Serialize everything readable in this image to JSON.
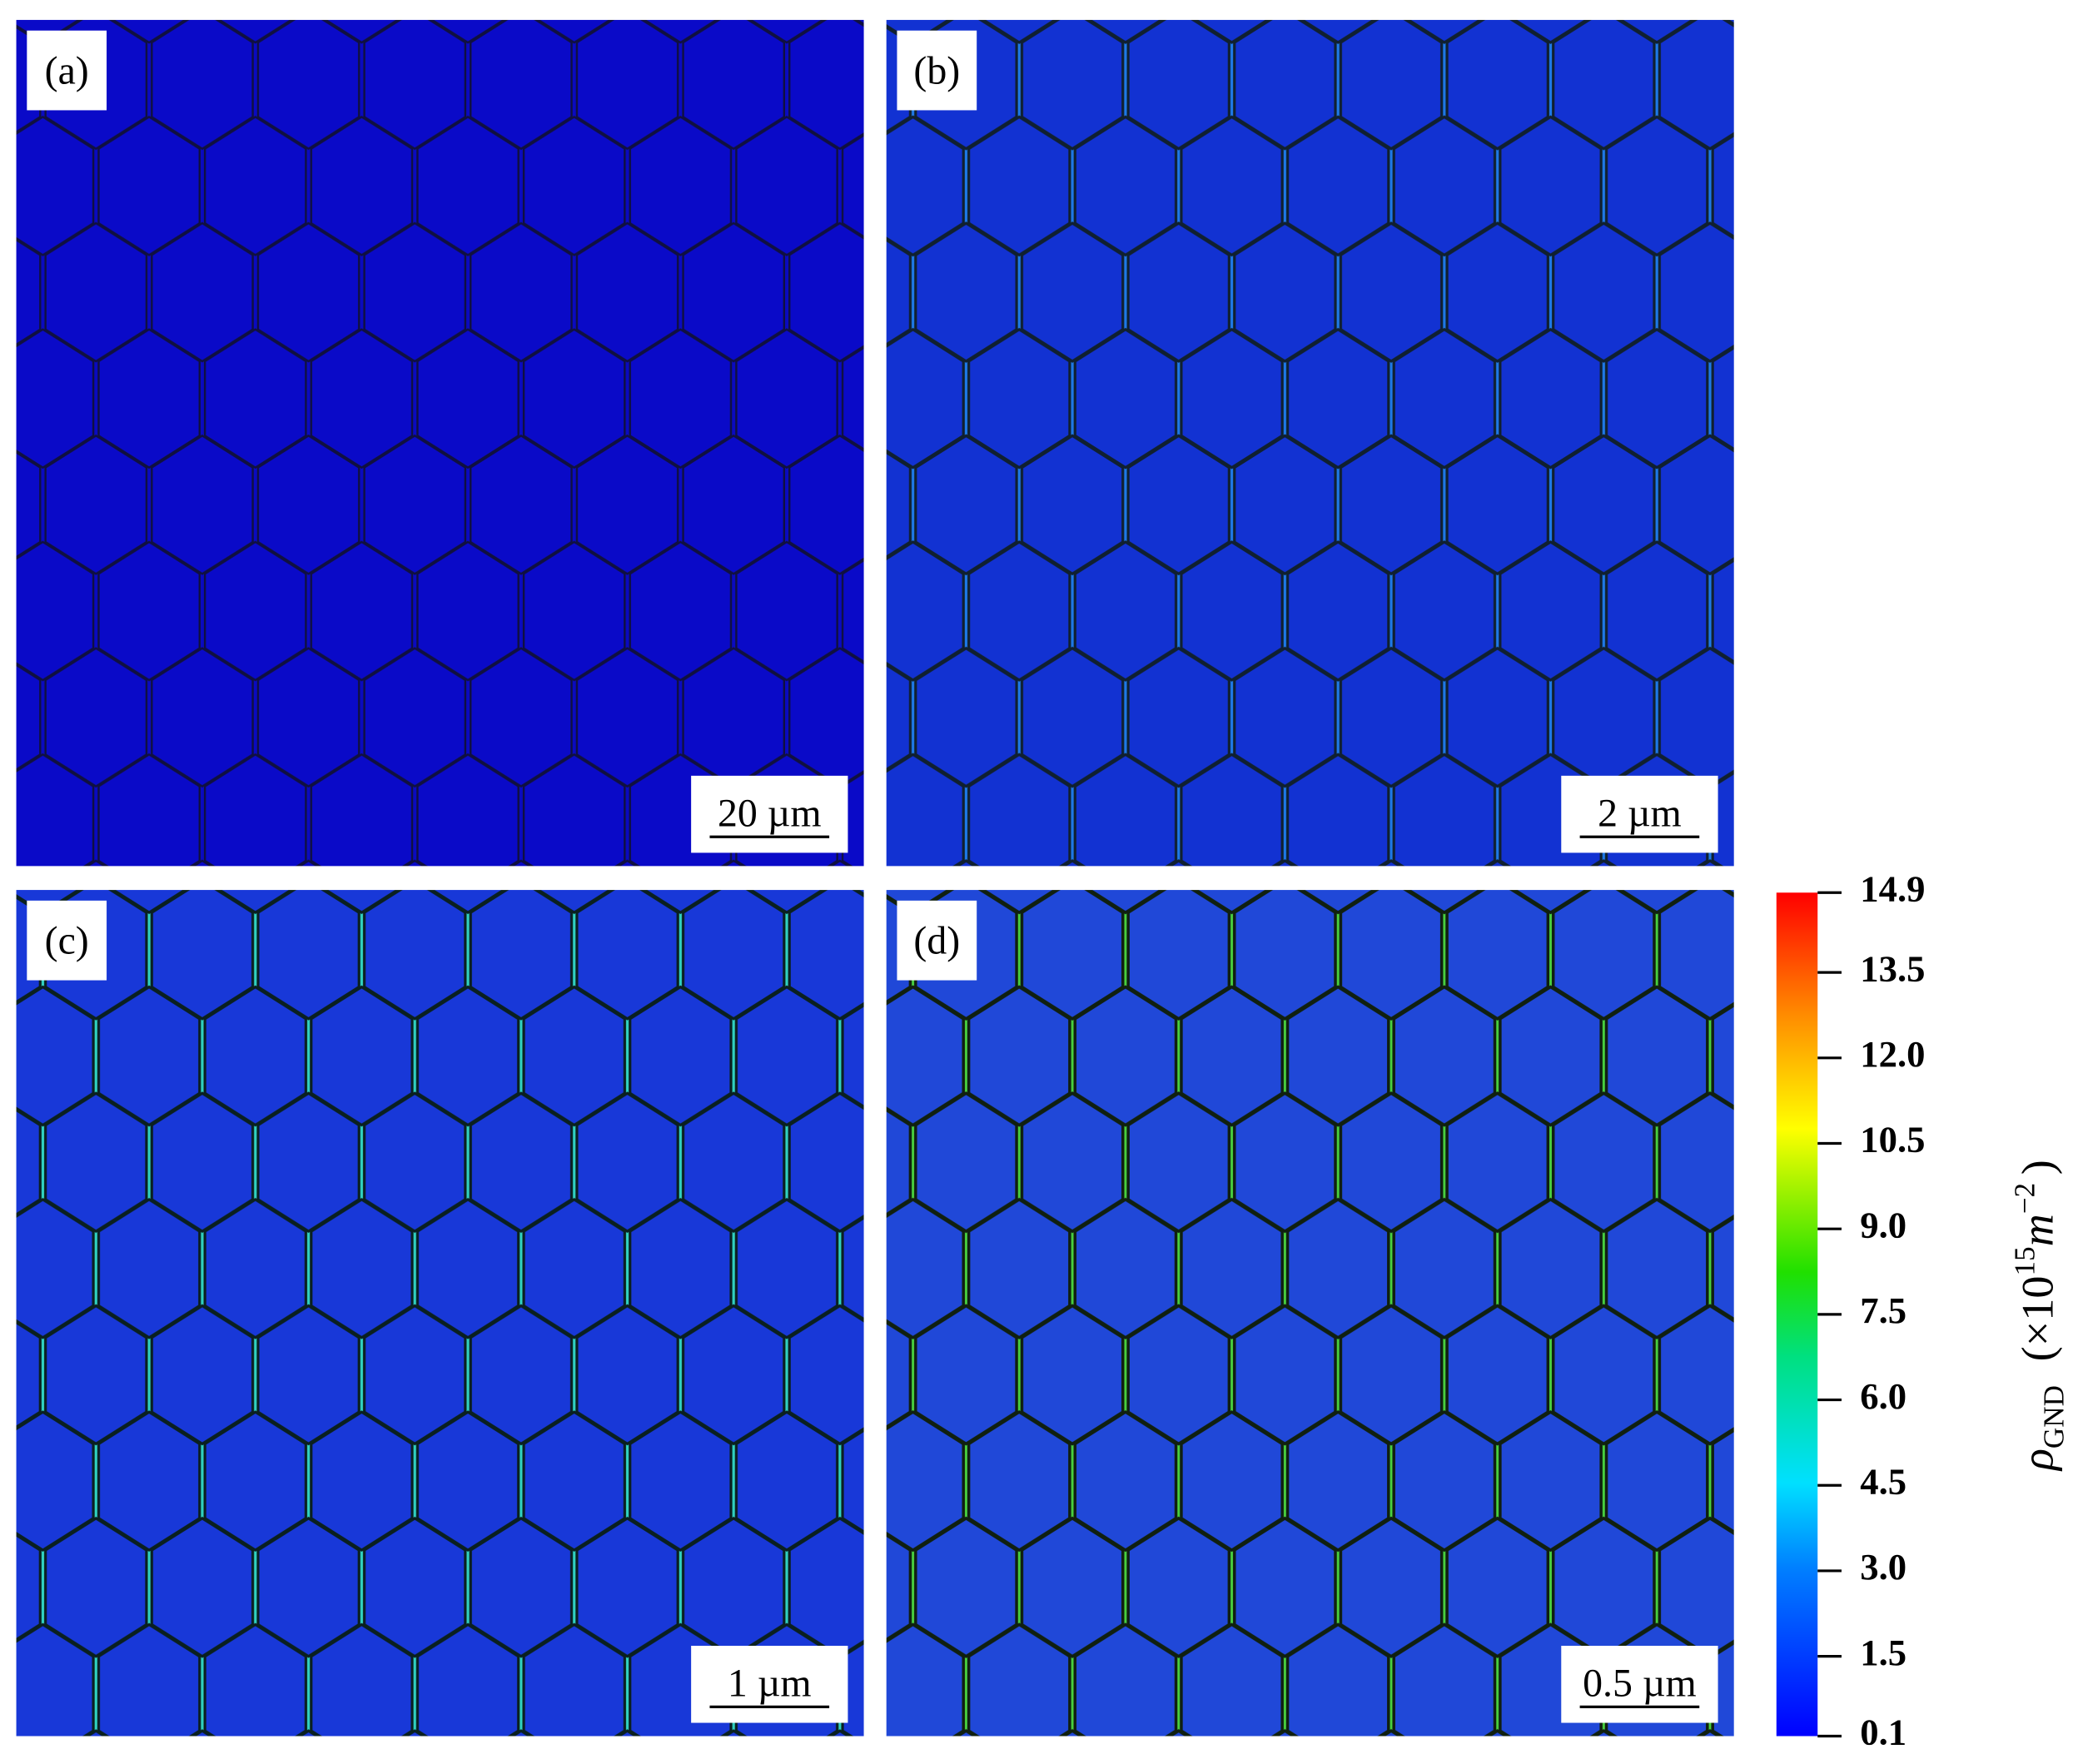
{
  "panels": [
    {
      "label": "(a)",
      "scale_bar": "20 µm"
    },
    {
      "label": "(b)",
      "scale_bar": "2 µm"
    },
    {
      "label": "(c)",
      "scale_bar": "1 µm"
    },
    {
      "label": "(d)",
      "scale_bar": "0.5 µm"
    }
  ],
  "colorbar": {
    "ticks": [
      0.1,
      1.5,
      {
        "value": 3,
        "label": "3.0"
      },
      4.5,
      {
        "value": 6,
        "label": "6.0"
      },
      7.5,
      {
        "value": 9,
        "label": "9.0"
      },
      10.5,
      {
        "value": 12,
        "label": "12.0"
      },
      13.5,
      14.9
    ],
    "label": {
      "symbol": "ρ",
      "subscript": "GND",
      "prefix": "(×10",
      "exponent": "15",
      "unit": "m",
      "unit_exponent": "−2",
      "suffix": ")"
    }
  }
}
